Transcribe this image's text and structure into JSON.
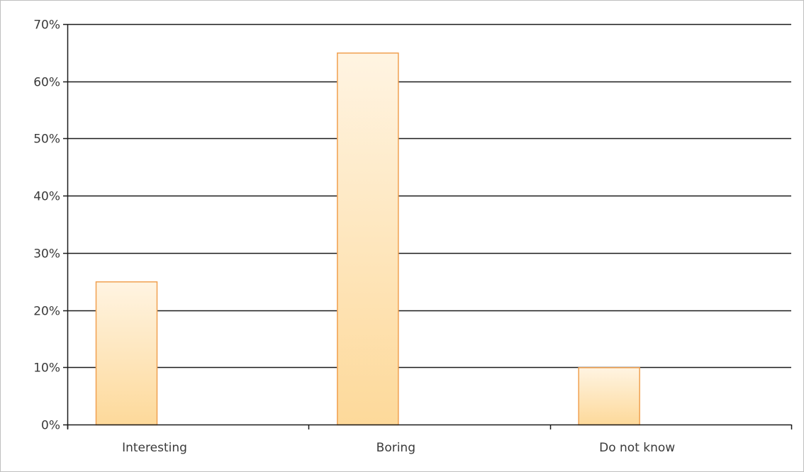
{
  "chart_data": {
    "type": "bar",
    "categories": [
      "Interesting",
      "Boring",
      "Do not know"
    ],
    "values": [
      25,
      65,
      10
    ],
    "value_unit": "%",
    "ylim": [
      0,
      70
    ],
    "yticks": [
      0,
      10,
      20,
      30,
      40,
      50,
      60,
      70
    ],
    "ytick_labels": [
      "0%",
      "10%",
      "20%",
      "30%",
      "40%",
      "50%",
      "60%",
      "70%"
    ],
    "grid": true,
    "legend": "none",
    "colors": {
      "bar_fill_top": "#fff4e2",
      "bar_fill_bottom": "#fdd99a",
      "bar_stroke": "#f0a050",
      "gridline": "#1a1a1a",
      "axis": "#1a1a1a",
      "frame": "#bfbfbf"
    }
  }
}
